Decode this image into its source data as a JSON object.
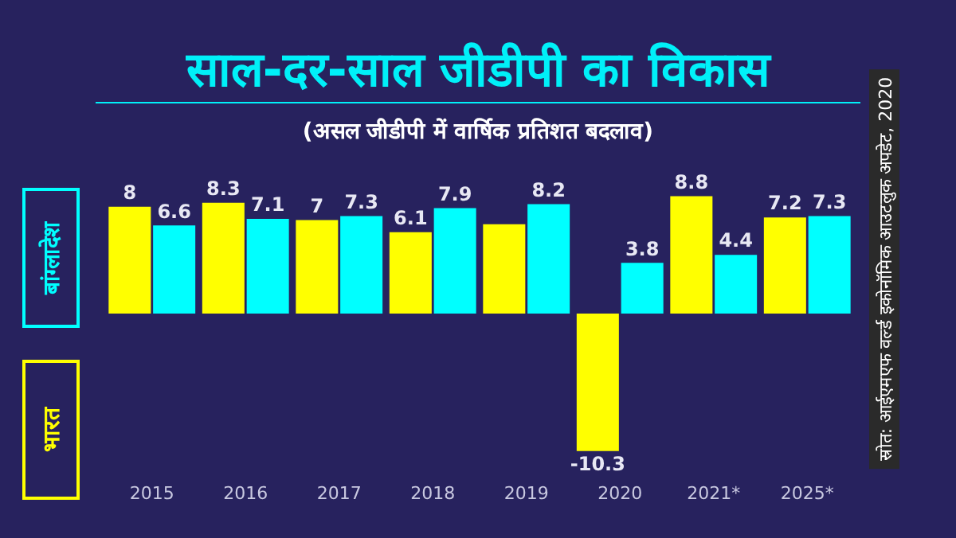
{
  "chart_data": {
    "type": "bar",
    "title": "साल-दर-साल जीडीपी का विकास",
    "subtitle": "(असल जीडीपी में वार्षिक प्रतिशत बदलाव)",
    "annotations": [
      "स्रोत: आईएमएफ वर्ल्ड इकोनॉमिक आउटलुक अपडेट, 2020"
    ],
    "categories": [
      "2015",
      "2016",
      "2017",
      "2018",
      "2019",
      "2020",
      "2021*",
      "2025*"
    ],
    "series": [
      {
        "name": "भारत",
        "color": "#ffff00",
        "values": [
          8,
          8.3,
          7,
          6.1,
          6.7,
          -10.3,
          8.8,
          7.2
        ],
        "value_labels": [
          "8",
          "8.3",
          "7",
          "6.1",
          null,
          "-10.3",
          "8.8",
          "7.2"
        ]
      },
      {
        "name": "बांग्लादेश",
        "color": "#00ffff",
        "values": [
          6.6,
          7.1,
          7.3,
          7.9,
          8.2,
          3.8,
          4.4,
          7.3
        ],
        "value_labels": [
          "6.6",
          "7.1",
          "7.3",
          "7.9",
          "8.2",
          "3.8",
          "4.4",
          "7.3"
        ]
      }
    ],
    "legend": "left",
    "grid": false
  }
}
